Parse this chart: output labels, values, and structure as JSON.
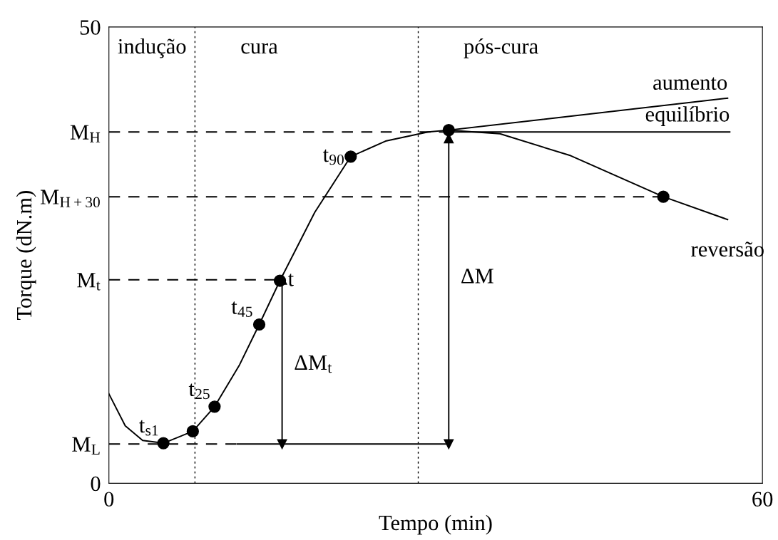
{
  "chart_data": {
    "type": "line",
    "xlabel": "Tempo (min)",
    "ylabel": "Torque (dN.m)",
    "xlim": [
      0,
      60
    ],
    "xticks": [
      0,
      60
    ],
    "ylim": [
      0,
      50
    ],
    "yticks": [
      0,
      {
        "value": 4.3,
        "label": "M$_{L}$"
      },
      {
        "value": 22.3,
        "label": "M$_{t}$"
      },
      {
        "value": 31.4,
        "label": "M$_{H+30}$"
      },
      {
        "value": 38.5,
        "label": "M$_{H}$"
      },
      50
    ],
    "grid": false,
    "legend": false,
    "series": [
      {
        "color": "#000000",
        "x": [
          0,
          1.5,
          3.1,
          5.0,
          7.7,
          9.7,
          12.0,
          13.8,
          15.7,
          18.9,
          22.2,
          25.4,
          29.3,
          31.2,
          35.9,
          42.4,
          50.9,
          56.8
        ],
        "values": [
          9.8,
          6.3,
          4.7,
          4.4,
          5.7,
          8.4,
          13.0,
          17.4,
          22.2,
          29.7,
          35.8,
          37.5,
          38.5,
          38.7,
          38.3,
          35.9,
          31.4,
          28.9
        ]
      },
      {
        "color": "#000000",
        "x": [
          31.2,
          56.8
        ],
        "values": [
          38.7,
          42.2
        ]
      },
      {
        "color": "#000000",
        "x": [
          31.2,
          57.0
        ],
        "values": [
          38.5,
          38.5
        ]
      },
      {
        "color": "#000000",
        "line_style": "dashed",
        "x": [
          0,
          31.2
        ],
        "values": [
          38.5,
          38.5
        ]
      },
      {
        "color": "#000000",
        "line_style": "dashed",
        "x": [
          0,
          50.9
        ],
        "values": [
          31.4,
          31.4
        ]
      },
      {
        "color": "#000000",
        "line_style": "dashed",
        "x": [
          0,
          15.7
        ],
        "values": [
          22.3,
          22.3
        ]
      },
      {
        "color": "#000000",
        "line_style": "dashed",
        "x": [
          0,
          11.8
        ],
        "values": [
          4.3,
          4.3
        ]
      },
      {
        "color": "#000000",
        "x": [
          11.8,
          31.2
        ],
        "values": [
          4.3,
          4.3
        ]
      },
      {
        "color": "#000000",
        "marker": "triangle",
        "x": [
          15.9,
          15.9
        ],
        "values": [
          4.3,
          22.3
        ]
      },
      {
        "color": "#000000",
        "marker": "triangle",
        "x": [
          31.2,
          31.2
        ],
        "values": [
          4.3,
          37.8
        ]
      },
      {
        "type": "scatter",
        "color": "#000000",
        "marker": "circle",
        "x": [
          5.0,
          7.7,
          9.7,
          13.8,
          15.7,
          22.2,
          31.2,
          50.9
        ],
        "values": [
          4.4,
          5.7,
          8.4,
          17.4,
          22.2,
          35.8,
          38.7,
          31.4
        ]
      }
    ],
    "ref_lines": [
      {
        "axis": "x",
        "value": 7.9,
        "line_style": "dotted"
      },
      {
        "axis": "x",
        "value": 28.4,
        "line_style": "dotted"
      }
    ],
    "annotations": [
      "indução",
      "cura",
      "pós-cura",
      {
        "text": "t$_{s1}$",
        "x": 5.0,
        "y": 4.4
      },
      {
        "text": "t$_{25}$",
        "x": 9.7,
        "y": 8.4
      },
      {
        "text": "t$_{45}$",
        "x": 13.8,
        "y": 17.4
      },
      {
        "text": "t",
        "x": 15.7,
        "y": 22.2
      },
      {
        "text": "t$_{90}$",
        "x": 22.2,
        "y": 35.8
      },
      {
        "text": "aumento",
        "x": 56.8,
        "y": 42.2
      },
      {
        "text": "equilíbrio",
        "x": 57.0,
        "y": 38.5
      },
      {
        "text": "reversão",
        "x": 56.8,
        "y": 28.9
      },
      {
        "text": "ΔM$_{t}$",
        "x": 15.9,
        "y": 13.0
      },
      {
        "text": "ΔM",
        "x": 31.2,
        "y": 22.5
      }
    ]
  }
}
